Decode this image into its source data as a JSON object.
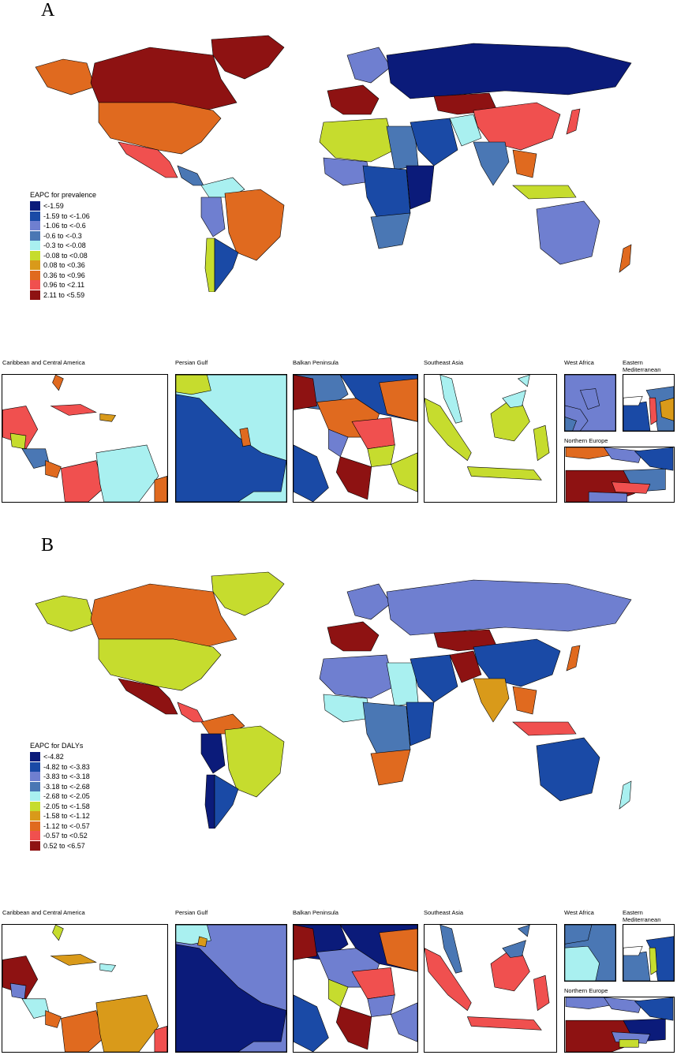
{
  "panels": [
    {
      "letter": "A",
      "legend_title": "EAPC for prevalence",
      "legend": [
        {
          "label": "<-1.59",
          "color": "#0b1b7a"
        },
        {
          "label": "-1.59 to <-1.06",
          "color": "#1a4aa6"
        },
        {
          "label": "-1.06 to <-0.6",
          "color": "#6f7fd0"
        },
        {
          "label": "-0.6 to <-0.3",
          "color": "#4a77b4"
        },
        {
          "label": "-0.3 to <-0.08",
          "color": "#a9f0f0"
        },
        {
          "label": "-0.08 to <0.08",
          "color": "#c6dc2e"
        },
        {
          "label": "0.08 to <0.36",
          "color": "#d99a1a"
        },
        {
          "label": "0.36 to <0.96",
          "color": "#e06a1f"
        },
        {
          "label": "0.96 to <2.11",
          "color": "#f0504f"
        },
        {
          "label": "2.11 to <5.59",
          "color": "#8e1212"
        }
      ],
      "insets": [
        "Caribbean and Central America",
        "Persian Gulf",
        "Balkan Peninsula",
        "Southeast Asia",
        "West Africa",
        "Eastern Mediterranean",
        "Northern Europe"
      ]
    },
    {
      "letter": "B",
      "legend_title": "EAPC for DALYs",
      "legend": [
        {
          "label": "<-4.82",
          "color": "#0b1b7a"
        },
        {
          "label": "-4.82 to <-3.83",
          "color": "#1a4aa6"
        },
        {
          "label": "-3.83 to <-3.18",
          "color": "#6f7fd0"
        },
        {
          "label": "-3.18 to <-2.68",
          "color": "#4a77b4"
        },
        {
          "label": "-2.68 to <-2.05",
          "color": "#a9f0f0"
        },
        {
          "label": "-2.05 to <-1.58",
          "color": "#c6dc2e"
        },
        {
          "label": "-1.58 to <-1.12",
          "color": "#d99a1a"
        },
        {
          "label": "-1.12 to <-0.57",
          "color": "#e06a1f"
        },
        {
          "label": "-0.57 to <0.52",
          "color": "#f0504f"
        },
        {
          "label": "0.52 to <6.57",
          "color": "#8e1212"
        }
      ],
      "insets": [
        "Caribbean and Central America",
        "Persian Gulf",
        "Balkan Peninsula",
        "Southeast Asia",
        "West Africa",
        "Eastern Mediterranean",
        "Northern Europe"
      ]
    }
  ]
}
